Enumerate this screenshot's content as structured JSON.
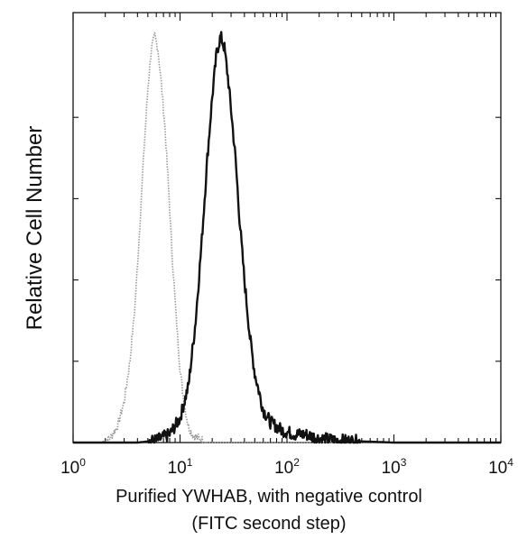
{
  "chart_data": {
    "type": "line",
    "title": "",
    "xlabel": "Purified YWHAB, with negative control",
    "xlabel_line2": "(FITC second step)",
    "ylabel": "Relative Cell Number",
    "x_scale": "log",
    "xlim": [
      1,
      10000
    ],
    "ylim": [
      0,
      100
    ],
    "x_ticks": [
      {
        "base": "10",
        "exp": "0",
        "value": 1
      },
      {
        "base": "10",
        "exp": "1",
        "value": 10
      },
      {
        "base": "10",
        "exp": "2",
        "value": 100
      },
      {
        "base": "10",
        "exp": "3",
        "value": 1000
      },
      {
        "base": "10",
        "exp": "4",
        "value": 10000
      }
    ],
    "y_ticks_unlabeled": [
      20,
      40,
      60,
      80
    ],
    "grid": false,
    "legend": "none",
    "series": [
      {
        "role": "negative control",
        "color": "#9a9a9a",
        "style": "dotted",
        "x": [
          1,
          1.8,
          2.2,
          2.6,
          3.0,
          3.4,
          3.8,
          4.2,
          4.6,
          5.0,
          5.4,
          5.8,
          6.2,
          6.6,
          7.2,
          7.8,
          8.4,
          9.2,
          10,
          11,
          12,
          13,
          15,
          18,
          25,
          40,
          100,
          10000
        ],
        "y": [
          0,
          0,
          1,
          4,
          10,
          20,
          34,
          53,
          72,
          87,
          97,
          100,
          97,
          90,
          78,
          63,
          47,
          31,
          18,
          9,
          4,
          2,
          1,
          0,
          0,
          0,
          0,
          0
        ]
      },
      {
        "role": "YWHAB",
        "color": "#111111",
        "style": "solid",
        "x": [
          1,
          4,
          6,
          8,
          10,
          12,
          14,
          16,
          18,
          20,
          22,
          24,
          26,
          28,
          30,
          33,
          36,
          40,
          45,
          50,
          60,
          70,
          90,
          120,
          150,
          200,
          300,
          1000,
          10000
        ],
        "y": [
          0,
          0,
          0.5,
          2,
          6,
          14,
          30,
          50,
          70,
          85,
          96,
          100,
          97,
          90,
          82,
          70,
          55,
          40,
          26,
          17,
          8,
          5,
          3,
          2,
          2,
          1,
          0.5,
          0,
          0
        ]
      }
    ]
  }
}
